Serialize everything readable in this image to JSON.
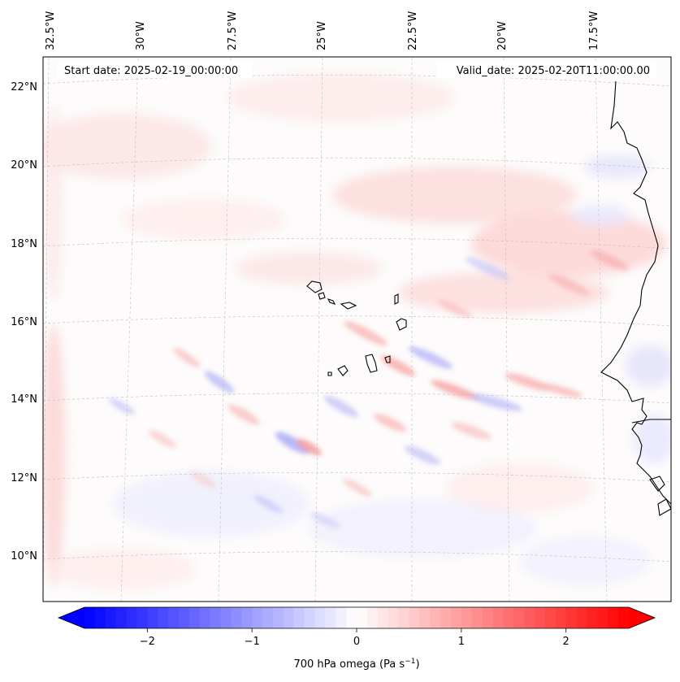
{
  "map": {
    "start_date": "Start date: 2025-02-19_00:00:00",
    "valid_date": "Valid_date: 2025-02-20T11:00:00.00",
    "lon_labels": [
      "32.5°W",
      "30°W",
      "27.5°W",
      "25°W",
      "22.5°W",
      "20°W",
      "17.5°W"
    ],
    "lat_labels": [
      "22°N",
      "20°N",
      "18°N",
      "16°N",
      "14°N",
      "12°N",
      "10°N"
    ],
    "field": "700 hPa omega"
  },
  "colorbar": {
    "label_main": "700 hPa omega (Pa s",
    "label_exp": "−1",
    "label_close": ")",
    "ticks": [
      "−2",
      "−1",
      "0",
      "1",
      "2"
    ],
    "tick_values": [
      -2,
      -1,
      0,
      1,
      2
    ],
    "vmin": -2.6,
    "vmax": 2.6,
    "cmap": "bwr",
    "low_color": "#0000ff",
    "mid_color": "#ffffff",
    "high_color": "#ff0000"
  }
}
